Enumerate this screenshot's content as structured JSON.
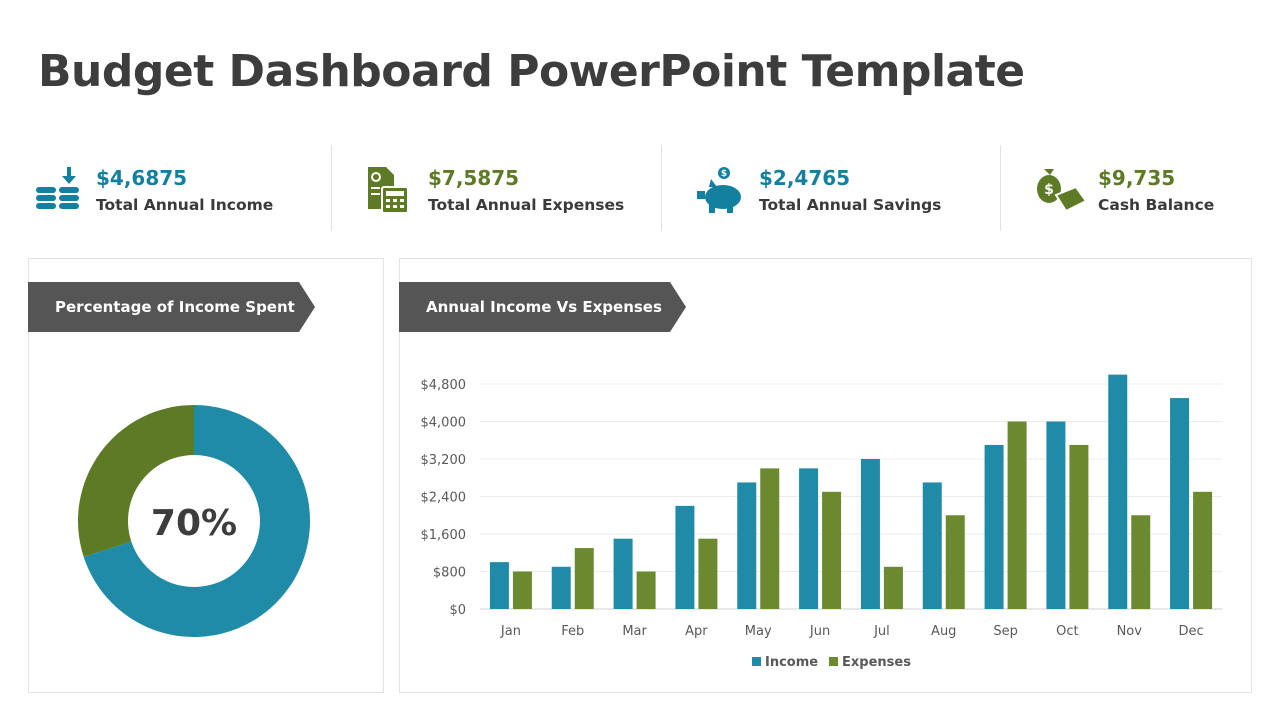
{
  "title": "Budget Dashboard PowerPoint Template",
  "colors": {
    "income": "#1f8ba6",
    "expenses": "#6b8a30",
    "teal_text": "#13809f",
    "green_text": "#5d7a25",
    "banner": "#555555"
  },
  "kpis": [
    {
      "value": "$4,6875",
      "label": "Total Annual Income",
      "icon": "coins-download-icon"
    },
    {
      "value": "$7,5875",
      "label": "Total Annual Expenses",
      "icon": "document-calculator-icon"
    },
    {
      "value": "$2,4765",
      "label": "Total Annual Savings",
      "icon": "piggy-bank-icon"
    },
    {
      "value": "$9,735",
      "label": "Cash Balance",
      "icon": "money-bag-cash-icon"
    }
  ],
  "donut_panel": {
    "title": "Percentage of Income Spent"
  },
  "chart_panel": {
    "title": "Annual Income Vs Expenses"
  },
  "chart_data": [
    {
      "type": "pie",
      "variant": "donut",
      "center_label": "70%",
      "values": [
        70,
        30
      ],
      "colors": [
        "#1f8ba6",
        "#5d7a25"
      ]
    },
    {
      "type": "bar",
      "categories": [
        "Jan",
        "Feb",
        "Mar",
        "Apr",
        "May",
        "Jun",
        "Jul",
        "Aug",
        "Sep",
        "Oct",
        "Nov",
        "Dec"
      ],
      "series": [
        {
          "name": "Income",
          "values": [
            1000,
            900,
            1500,
            2200,
            2700,
            3000,
            3200,
            2700,
            3500,
            4000,
            5000,
            4500
          ]
        },
        {
          "name": "Expenses",
          "values": [
            800,
            1300,
            800,
            1500,
            3000,
            2500,
            900,
            2000,
            4000,
            3500,
            2000,
            2500
          ]
        }
      ],
      "yticks": [
        "$0",
        "$800",
        "$1,600",
        "$2,400",
        "$3,200",
        "$4,000",
        "$4,800"
      ],
      "ylim": [
        0,
        4800
      ],
      "grid": true,
      "legend": "bottom"
    }
  ]
}
